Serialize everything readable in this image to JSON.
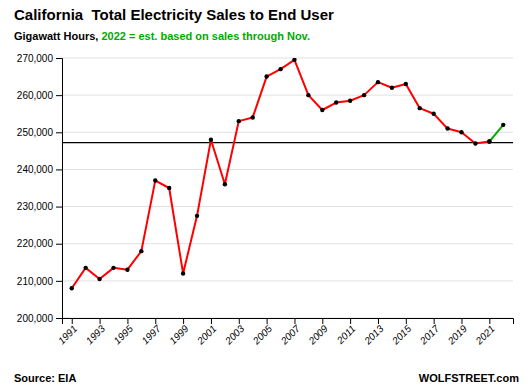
{
  "chart_data": {
    "type": "line",
    "title": "California  Total Electricity Sales to End User",
    "subtitle": [
      {
        "text": "Gigawatt Hours, ",
        "color": "#000000"
      },
      {
        "text": "2022 = est. based on sales through Nov.",
        "color": "#00AA00"
      }
    ],
    "source": "Source: EIA",
    "credit": "WOLFSTREET.com",
    "x": [
      1991,
      1992,
      1993,
      1994,
      1995,
      1996,
      1997,
      1998,
      1999,
      2000,
      2001,
      2002,
      2003,
      2004,
      2005,
      2006,
      2007,
      2008,
      2009,
      2010,
      2011,
      2012,
      2013,
      2014,
      2015,
      2016,
      2017,
      2018,
      2019,
      2020,
      2021,
      2022
    ],
    "series": [
      {
        "color": "#FF0000",
        "marker": "circle",
        "values": [
          208000,
          213500,
          210500,
          213500,
          213000,
          218000,
          237000,
          235000,
          212000,
          227500,
          248000,
          236000,
          253000,
          254000,
          265000,
          267000,
          269500,
          260000,
          256000,
          258000,
          258500,
          260000,
          263500,
          262000,
          263000,
          256500,
          255000,
          251000,
          250000,
          247000,
          247500,
          null
        ]
      },
      {
        "color": "#00AA00",
        "marker": "circle",
        "values": [
          null,
          null,
          null,
          null,
          null,
          null,
          null,
          null,
          null,
          null,
          null,
          null,
          null,
          null,
          null,
          null,
          null,
          null,
          null,
          null,
          null,
          null,
          null,
          null,
          null,
          null,
          null,
          null,
          null,
          null,
          247500,
          252000
        ]
      }
    ],
    "reference_line": {
      "value": 247200,
      "color": "#000000"
    },
    "xlim": [
      1990.3,
      2022.7
    ],
    "xticks": [
      1991,
      1993,
      1995,
      1997,
      1999,
      2001,
      2003,
      2005,
      2007,
      2009,
      2011,
      2013,
      2015,
      2017,
      2019,
      2021
    ],
    "ylim": [
      200000,
      270000
    ],
    "yticks": [
      {
        "value": 200000,
        "label": "200,000"
      },
      {
        "value": 210000,
        "label": "210,000"
      },
      {
        "value": 220000,
        "label": "220,000"
      },
      {
        "value": 230000,
        "label": "230,000"
      },
      {
        "value": 240000,
        "label": "240,000"
      },
      {
        "value": 250000,
        "label": "250,000"
      },
      {
        "value": 260000,
        "label": "260,000"
      },
      {
        "value": 270000,
        "label": "270,000"
      }
    ],
    "grid": true
  }
}
